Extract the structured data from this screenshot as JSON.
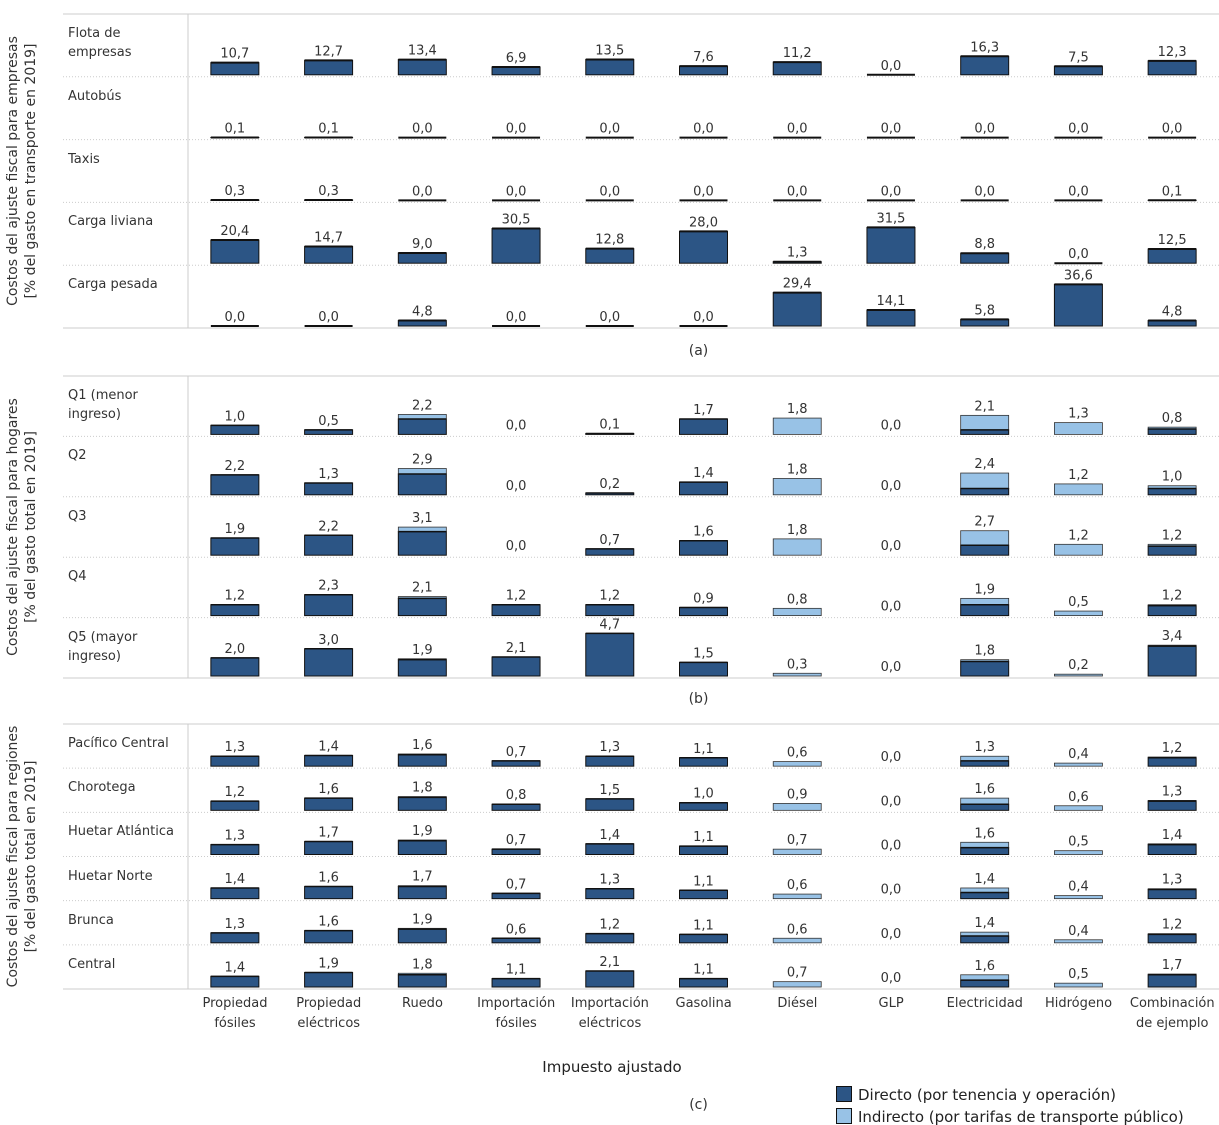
{
  "chart_data": {
    "type": "bar",
    "categories": [
      "Propiedad fósiles",
      "Propiedad eléctricos",
      "Ruedo",
      "Importación fósiles",
      "Importación eléctricos",
      "Gasolina",
      "Diésel",
      "GLP",
      "Electricidad",
      "Hidrógeno",
      "Combinación de ejemplo"
    ],
    "xlabel": "Impuesto ajustado",
    "series": [
      {
        "name": "Directo (por tenencia y operación)",
        "color": "#2c5585"
      },
      {
        "name": "Indirecto (por tarifas de transporte público)",
        "color": "#98c2e6"
      }
    ],
    "panels": [
      {
        "caption": "(a)",
        "ylabel": [
          "Costos del ajuste fiscal para empresas",
          "[% del gasto en transporte en 2019]"
        ],
        "ylim": [
          0,
          50
        ],
        "rows": [
          {
            "name": "Flota de empresas",
            "values": [
              10.7,
              12.7,
              13.4,
              6.9,
              13.5,
              7.6,
              11.2,
              0.0,
              16.3,
              7.5,
              12.3
            ],
            "value_labels": [
              "10,7",
              "12,7",
              "13,4",
              "6,9",
              "13,5",
              "7,6",
              "11,2",
              "0,0",
              "16,3",
              "7,5",
              "12,3"
            ]
          },
          {
            "name": "Autobús",
            "values": [
              0.1,
              0.1,
              0.0,
              0.0,
              0.0,
              0.0,
              0.0,
              0.0,
              0.0,
              0.0,
              0.0
            ],
            "value_labels": [
              "0,1",
              "0,1",
              "0,0",
              "0,0",
              "0,0",
              "0,0",
              "0,0",
              "0,0",
              "0,0",
              "0,0",
              "0,0"
            ]
          },
          {
            "name": "Taxis",
            "values": [
              0.3,
              0.3,
              0.0,
              0.0,
              0.0,
              0.0,
              0.0,
              0.0,
              0.0,
              0.0,
              0.1
            ],
            "value_labels": [
              "0,3",
              "0,3",
              "0,0",
              "0,0",
              "0,0",
              "0,0",
              "0,0",
              "0,0",
              "0,0",
              "0,0",
              "0,1"
            ]
          },
          {
            "name": "Carga liviana",
            "values": [
              20.4,
              14.7,
              9.0,
              30.5,
              12.8,
              28.0,
              1.3,
              31.5,
              8.8,
              0.0,
              12.5
            ],
            "value_labels": [
              "20,4",
              "14,7",
              "9,0",
              "30,5",
              "12,8",
              "28,0",
              "1,3",
              "31,5",
              "8,8",
              "0,0",
              "12,5"
            ]
          },
          {
            "name": "Carga pesada",
            "values": [
              0.0,
              0.0,
              4.8,
              0.0,
              0.0,
              0.0,
              29.4,
              14.1,
              5.8,
              36.6,
              4.8
            ],
            "value_labels": [
              "0,0",
              "0,0",
              "4,8",
              "0,0",
              "0,0",
              "0,0",
              "29,4",
              "14,1",
              "5,8",
              "36,6",
              "4,8"
            ]
          }
        ]
      },
      {
        "caption": "(b)",
        "ylabel": [
          "Costos del ajuste fiscal para hogares",
          "[% del gasto total en 2019]"
        ],
        "ylim": [
          0,
          6
        ],
        "rows": [
          {
            "name": "Q1 (menor ingreso)",
            "direct": [
              1.0,
              0.5,
              1.7,
              0.0,
              0.1,
              1.7,
              0.0,
              0.0,
              0.5,
              0.0,
              0.6
            ],
            "indirect": [
              0.0,
              0.0,
              0.5,
              0.0,
              0.0,
              0.0,
              1.8,
              0.0,
              1.6,
              1.3,
              0.2
            ],
            "totals": [
              1.0,
              0.5,
              2.2,
              0.0,
              0.1,
              1.7,
              1.8,
              0.0,
              2.1,
              1.3,
              0.8
            ],
            "value_labels": [
              "1,0",
              "0,5",
              "2,2",
              "0,0",
              "0,1",
              "1,7",
              "1,8",
              "0,0",
              "2,1",
              "1,3",
              "0,8"
            ]
          },
          {
            "name": "Q2",
            "direct": [
              2.2,
              1.3,
              2.3,
              0.0,
              0.2,
              1.4,
              0.0,
              0.0,
              0.7,
              0.0,
              0.7
            ],
            "indirect": [
              0.0,
              0.0,
              0.6,
              0.0,
              0.0,
              0.0,
              1.8,
              0.0,
              1.7,
              1.2,
              0.3
            ],
            "totals": [
              2.2,
              1.3,
              2.9,
              0.0,
              0.2,
              1.4,
              1.8,
              0.0,
              2.4,
              1.2,
              1.0
            ],
            "value_labels": [
              "2,2",
              "1,3",
              "2,9",
              "0,0",
              "0,2",
              "1,4",
              "1,8",
              "0,0",
              "2,4",
              "1,2",
              "1,0"
            ]
          },
          {
            "name": "Q3",
            "direct": [
              1.9,
              2.2,
              2.6,
              0.0,
              0.7,
              1.6,
              0.0,
              0.0,
              1.1,
              0.0,
              1.0
            ],
            "indirect": [
              0.0,
              0.0,
              0.5,
              0.0,
              0.0,
              0.0,
              1.8,
              0.0,
              1.6,
              1.2,
              0.2
            ],
            "totals": [
              1.9,
              2.2,
              3.1,
              0.0,
              0.7,
              1.6,
              1.8,
              0.0,
              2.7,
              1.2,
              1.2
            ],
            "value_labels": [
              "1,9",
              "2,2",
              "3,1",
              "0,0",
              "0,7",
              "1,6",
              "1,8",
              "0,0",
              "2,7",
              "1,2",
              "1,2"
            ]
          },
          {
            "name": "Q4",
            "direct": [
              1.2,
              2.3,
              1.9,
              1.2,
              1.2,
              0.9,
              0.0,
              0.0,
              1.2,
              0.0,
              1.1
            ],
            "indirect": [
              0.0,
              0.0,
              0.2,
              0.0,
              0.0,
              0.0,
              0.8,
              0.0,
              0.7,
              0.5,
              0.1
            ],
            "totals": [
              1.2,
              2.3,
              2.1,
              1.2,
              1.2,
              0.9,
              0.8,
              0.0,
              1.9,
              0.5,
              1.2
            ],
            "value_labels": [
              "1,2",
              "2,3",
              "2,1",
              "1,2",
              "1,2",
              "0,9",
              "0,8",
              "0,0",
              "1,9",
              "0,5",
              "1,2"
            ]
          },
          {
            "name": "Q5 (mayor ingreso)",
            "direct": [
              2.0,
              3.0,
              1.8,
              2.1,
              4.7,
              1.5,
              0.0,
              0.0,
              1.6,
              0.0,
              3.3
            ],
            "indirect": [
              0.0,
              0.0,
              0.1,
              0.0,
              0.0,
              0.0,
              0.3,
              0.0,
              0.2,
              0.2,
              0.1
            ],
            "totals": [
              2.0,
              3.0,
              1.9,
              2.1,
              4.7,
              1.5,
              0.3,
              0.0,
              1.8,
              0.2,
              3.4
            ],
            "value_labels": [
              "2,0",
              "3,0",
              "1,9",
              "2,1",
              "4,7",
              "1,5",
              "0,3",
              "0,0",
              "1,8",
              "0,2",
              "3,4"
            ]
          }
        ]
      },
      {
        "caption": "(c)",
        "ylabel": [
          "Costos del ajuste fiscal para regiones",
          "[% del gasto total en 2019]"
        ],
        "ylim": [
          0,
          5
        ],
        "rows": [
          {
            "name": "Pacífico Central",
            "direct": [
              1.3,
              1.4,
              1.5,
              0.7,
              1.3,
              1.1,
              0.0,
              0.0,
              0.7,
              0.0,
              1.1
            ],
            "indirect": [
              0.0,
              0.0,
              0.1,
              0.0,
              0.0,
              0.0,
              0.6,
              0.0,
              0.6,
              0.4,
              0.1
            ],
            "totals": [
              1.3,
              1.4,
              1.6,
              0.7,
              1.3,
              1.1,
              0.6,
              0.0,
              1.3,
              0.4,
              1.2
            ],
            "value_labels": [
              "1,3",
              "1,4",
              "1,6",
              "0,7",
              "1,3",
              "1,1",
              "0,6",
              "0,0",
              "1,3",
              "0,4",
              "1,2"
            ]
          },
          {
            "name": "Chorotega",
            "direct": [
              1.2,
              1.6,
              1.7,
              0.8,
              1.5,
              1.0,
              0.0,
              0.0,
              0.8,
              0.0,
              1.2
            ],
            "indirect": [
              0.0,
              0.0,
              0.1,
              0.0,
              0.0,
              0.0,
              0.9,
              0.0,
              0.8,
              0.6,
              0.1
            ],
            "totals": [
              1.2,
              1.6,
              1.8,
              0.8,
              1.5,
              1.0,
              0.9,
              0.0,
              1.6,
              0.6,
              1.3
            ],
            "value_labels": [
              "1,2",
              "1,6",
              "1,8",
              "0,8",
              "1,5",
              "1,0",
              "0,9",
              "0,0",
              "1,6",
              "0,6",
              "1,3"
            ]
          },
          {
            "name": "Huetar Atlántica",
            "direct": [
              1.3,
              1.7,
              1.8,
              0.7,
              1.4,
              1.1,
              0.0,
              0.0,
              0.9,
              0.0,
              1.3
            ],
            "indirect": [
              0.0,
              0.0,
              0.1,
              0.0,
              0.0,
              0.0,
              0.7,
              0.0,
              0.7,
              0.5,
              0.1
            ],
            "totals": [
              1.3,
              1.7,
              1.9,
              0.7,
              1.4,
              1.1,
              0.7,
              0.0,
              1.6,
              0.5,
              1.4
            ],
            "value_labels": [
              "1,3",
              "1,7",
              "1,9",
              "0,7",
              "1,4",
              "1,1",
              "0,7",
              "0,0",
              "1,6",
              "0,5",
              "1,4"
            ]
          },
          {
            "name": "Huetar Norte",
            "direct": [
              1.4,
              1.6,
              1.6,
              0.7,
              1.3,
              1.1,
              0.0,
              0.0,
              0.8,
              0.0,
              1.2
            ],
            "indirect": [
              0.0,
              0.0,
              0.1,
              0.0,
              0.0,
              0.0,
              0.6,
              0.0,
              0.6,
              0.4,
              0.1
            ],
            "totals": [
              1.4,
              1.6,
              1.7,
              0.7,
              1.3,
              1.1,
              0.6,
              0.0,
              1.4,
              0.4,
              1.3
            ],
            "value_labels": [
              "1,4",
              "1,6",
              "1,7",
              "0,7",
              "1,3",
              "1,1",
              "0,6",
              "0,0",
              "1,4",
              "0,4",
              "1,3"
            ]
          },
          {
            "name": "Brunca",
            "direct": [
              1.3,
              1.6,
              1.8,
              0.6,
              1.2,
              1.1,
              0.0,
              0.0,
              0.9,
              0.0,
              1.1
            ],
            "indirect": [
              0.0,
              0.0,
              0.1,
              0.0,
              0.0,
              0.0,
              0.6,
              0.0,
              0.5,
              0.4,
              0.1
            ],
            "totals": [
              1.3,
              1.6,
              1.9,
              0.6,
              1.2,
              1.1,
              0.6,
              0.0,
              1.4,
              0.4,
              1.2
            ],
            "value_labels": [
              "1,3",
              "1,6",
              "1,9",
              "0,6",
              "1,2",
              "1,1",
              "0,6",
              "0,0",
              "1,4",
              "0,4",
              "1,2"
            ]
          },
          {
            "name": "Central",
            "direct": [
              1.4,
              1.9,
              1.6,
              1.1,
              2.1,
              1.1,
              0.0,
              0.0,
              0.9,
              0.0,
              1.6
            ],
            "indirect": [
              0.0,
              0.0,
              0.2,
              0.0,
              0.0,
              0.0,
              0.7,
              0.0,
              0.7,
              0.5,
              0.1
            ],
            "totals": [
              1.4,
              1.9,
              1.8,
              1.1,
              2.1,
              1.1,
              0.7,
              0.0,
              1.6,
              0.5,
              1.7
            ],
            "value_labels": [
              "1,4",
              "1,9",
              "1,8",
              "1,1",
              "2,1",
              "1,1",
              "0,7",
              "0,0",
              "1,6",
              "0,5",
              "1,7"
            ]
          }
        ]
      }
    ]
  }
}
